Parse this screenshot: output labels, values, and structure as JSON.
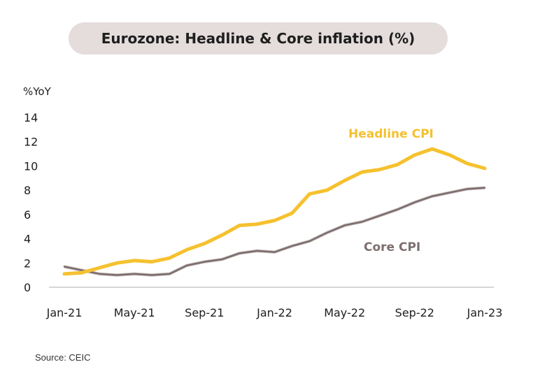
{
  "chart_data": {
    "type": "line",
    "title": "Eurozone: Headline & Core inflation (%)",
    "ylabel": "%YoY",
    "xlabel": "",
    "ylim": [
      0,
      14
    ],
    "yticks": [
      0,
      2,
      4,
      6,
      8,
      10,
      12,
      14
    ],
    "xtick_labels": [
      "Jan-21",
      "May-21",
      "Sep-21",
      "Jan-22",
      "May-22",
      "Sep-22",
      "Jan-23"
    ],
    "x": [
      "Jan-21",
      "Feb-21",
      "Mar-21",
      "Apr-21",
      "May-21",
      "Jun-21",
      "Jul-21",
      "Aug-21",
      "Sep-21",
      "Oct-21",
      "Nov-21",
      "Dec-21",
      "Jan-22",
      "Feb-22",
      "Mar-22",
      "Apr-22",
      "May-22",
      "Jun-22",
      "Jul-22",
      "Aug-22",
      "Sep-22",
      "Oct-22",
      "Nov-22",
      "Dec-22",
      "Jan-23"
    ],
    "grid": false,
    "series": [
      {
        "name": "Headline CPI",
        "color": "#f5c12e",
        "values": [
          1.1,
          1.2,
          1.6,
          2.0,
          2.2,
          2.1,
          2.4,
          3.1,
          3.6,
          4.3,
          5.1,
          5.2,
          5.5,
          6.1,
          7.7,
          8.0,
          8.8,
          9.5,
          9.7,
          10.1,
          10.9,
          11.4,
          10.9,
          10.2,
          9.8
        ]
      },
      {
        "name": "Core CPI",
        "color": "#7d6e6e",
        "values": [
          1.7,
          1.4,
          1.1,
          1.0,
          1.1,
          1.0,
          1.1,
          1.8,
          2.1,
          2.3,
          2.8,
          3.0,
          2.9,
          3.4,
          3.8,
          4.5,
          5.1,
          5.4,
          5.9,
          6.4,
          7.0,
          7.5,
          7.8,
          8.1,
          8.2
        ]
      }
    ],
    "annotations": [
      "Headline CPI",
      "Core CPI"
    ]
  },
  "source": "Source: CEIC",
  "colors": {
    "axis": "#bdbdbd",
    "text": "#1e1e1e",
    "pill": "#e5dcdc"
  }
}
